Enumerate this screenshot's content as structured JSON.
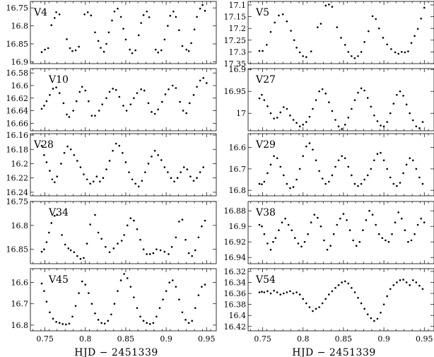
{
  "xlabel": "HJD − 2451339",
  "x_ticks": [
    "0.75",
    "0.8",
    "0.85",
    "0.9",
    "0.95"
  ],
  "chart_data": [
    {
      "type": "scatter",
      "title": "V4",
      "xlim": [
        0.732,
        0.962
      ],
      "ylim": [
        16.905,
        16.732
      ],
      "y_ticks": [
        "16.75",
        "16.8",
        "16.85",
        "16.9"
      ],
      "y_reversed": true,
      "x": [
        0.746,
        0.75,
        0.754,
        0.758,
        0.762,
        0.764,
        0.768,
        0.777,
        0.781,
        0.784,
        0.788,
        0.792,
        0.799,
        0.803,
        0.807,
        0.812,
        0.816,
        0.819,
        0.823,
        0.826,
        0.829,
        0.833,
        0.836,
        0.84,
        0.844,
        0.847,
        0.85,
        0.855,
        0.858,
        0.862,
        0.866,
        0.869,
        0.872,
        0.876,
        0.879,
        0.887,
        0.89,
        0.894,
        0.898,
        0.902,
        0.905,
        0.909,
        0.912,
        0.916,
        0.92,
        0.925,
        0.928,
        0.931,
        0.935,
        0.938,
        0.942,
        0.945,
        0.948
      ],
      "y": [
        16.873,
        16.866,
        16.862,
        16.798,
        16.778,
        16.762,
        16.768,
        16.837,
        16.862,
        16.87,
        16.868,
        16.858,
        16.768,
        16.762,
        16.771,
        16.818,
        16.842,
        16.861,
        16.872,
        16.85,
        16.818,
        16.785,
        16.76,
        16.752,
        16.775,
        16.808,
        16.838,
        16.866,
        16.876,
        16.868,
        16.826,
        16.792,
        16.77,
        16.76,
        16.776,
        16.866,
        16.874,
        16.868,
        16.838,
        16.8,
        16.772,
        16.76,
        16.775,
        16.812,
        16.856,
        16.866,
        16.87,
        16.848,
        16.81,
        16.775,
        16.752,
        16.742,
        16.758
      ]
    },
    {
      "type": "scatter",
      "title": "V5",
      "xlim": [
        0.732,
        0.962
      ],
      "ylim": [
        17.35,
        17.085
      ],
      "y_ticks": [
        "17.1",
        "17.15",
        "17.2",
        "17.25",
        "17.3",
        "17.35"
      ],
      "y_reversed": true,
      "x": [
        0.746,
        0.75,
        0.755,
        0.76,
        0.765,
        0.77,
        0.775,
        0.78,
        0.785,
        0.789,
        0.792,
        0.796,
        0.8,
        0.804,
        0.81,
        0.818,
        0.822,
        0.828,
        0.832,
        0.836,
        0.842,
        0.847,
        0.852,
        0.856,
        0.86,
        0.864,
        0.868,
        0.872,
        0.876,
        0.881,
        0.886,
        0.89,
        0.894,
        0.899,
        0.904,
        0.909,
        0.914,
        0.918,
        0.922,
        0.926,
        0.93,
        0.934,
        0.938,
        0.942,
        0.946,
        0.95
      ],
      "y": [
        17.296,
        17.296,
        17.27,
        17.215,
        17.175,
        17.145,
        17.14,
        17.17,
        17.21,
        17.25,
        17.282,
        17.302,
        17.318,
        17.322,
        17.298,
        17.195,
        17.18,
        17.103,
        17.098,
        17.108,
        17.195,
        17.24,
        17.27,
        17.3,
        17.318,
        17.327,
        17.318,
        17.3,
        17.258,
        17.212,
        17.148,
        17.16,
        17.2,
        17.24,
        17.268,
        17.288,
        17.302,
        17.308,
        17.3,
        17.302,
        17.298,
        17.262,
        17.232,
        17.202,
        17.158,
        17.112
      ]
    },
    {
      "type": "scatter",
      "title": "V10",
      "xlim": [
        0.732,
        0.962
      ],
      "ylim": [
        16.672,
        16.573
      ],
      "y_ticks": [
        "16.58",
        "16.6",
        "16.62",
        "16.64",
        "16.66"
      ],
      "y_reversed": true,
      "x": [
        0.746,
        0.749,
        0.752,
        0.756,
        0.76,
        0.764,
        0.768,
        0.773,
        0.777,
        0.78,
        0.785,
        0.789,
        0.793,
        0.796,
        0.8,
        0.804,
        0.808,
        0.812,
        0.817,
        0.821,
        0.826,
        0.83,
        0.834,
        0.838,
        0.842,
        0.847,
        0.851,
        0.856,
        0.86,
        0.864,
        0.869,
        0.873,
        0.878,
        0.882,
        0.886,
        0.89,
        0.895,
        0.899,
        0.903,
        0.908,
        0.912,
        0.917,
        0.921,
        0.925,
        0.929,
        0.934,
        0.938,
        0.942,
        0.946,
        0.95
      ],
      "y": [
        16.637,
        16.632,
        16.625,
        16.615,
        16.605,
        16.603,
        16.612,
        16.628,
        16.646,
        16.65,
        16.64,
        16.625,
        16.61,
        16.602,
        16.608,
        16.625,
        16.648,
        16.648,
        16.64,
        16.63,
        16.62,
        16.61,
        16.605,
        16.607,
        16.618,
        16.632,
        16.64,
        16.63,
        16.62,
        16.612,
        16.606,
        16.608,
        16.628,
        16.642,
        16.645,
        16.638,
        16.626,
        16.614,
        16.606,
        16.6,
        16.604,
        16.626,
        16.64,
        16.644,
        16.628,
        16.615,
        16.602,
        16.592,
        16.588,
        16.596
      ]
    },
    {
      "type": "scatter",
      "title": "V27",
      "xlim": [
        0.732,
        0.962
      ],
      "ylim": [
        17.04,
        16.898
      ],
      "y_ticks": [
        "16.9",
        "16.95",
        "17"
      ],
      "y_reversed": true,
      "x": [
        0.746,
        0.749,
        0.752,
        0.756,
        0.76,
        0.764,
        0.768,
        0.772,
        0.776,
        0.78,
        0.784,
        0.788,
        0.792,
        0.796,
        0.8,
        0.804,
        0.808,
        0.812,
        0.816,
        0.82,
        0.824,
        0.828,
        0.832,
        0.836,
        0.84,
        0.844,
        0.848,
        0.852,
        0.856,
        0.86,
        0.864,
        0.868,
        0.872,
        0.876,
        0.88,
        0.884,
        0.888,
        0.892,
        0.896,
        0.9,
        0.904,
        0.908,
        0.912,
        0.916,
        0.92,
        0.924,
        0.928,
        0.932,
        0.936,
        0.94,
        0.944,
        0.948
      ],
      "y": [
        16.966,
        16.958,
        16.97,
        16.984,
        17.0,
        17.012,
        17.01,
        16.998,
        16.986,
        16.99,
        17.005,
        17.015,
        17.022,
        17.03,
        17.026,
        17.02,
        17.008,
        16.99,
        16.97,
        16.95,
        16.945,
        16.955,
        16.975,
        16.995,
        17.015,
        17.03,
        17.036,
        17.026,
        17.01,
        16.99,
        16.97,
        16.953,
        16.943,
        16.948,
        16.965,
        16.985,
        17.005,
        17.018,
        17.028,
        17.03,
        17.02,
        17.0,
        16.978,
        16.958,
        16.95,
        16.96,
        16.98,
        17.0,
        17.016,
        17.03,
        17.034,
        17.02
      ]
    },
    {
      "type": "scatter",
      "title": "V28",
      "xlim": [
        0.732,
        0.962
      ],
      "ylim": [
        16.245,
        16.158
      ],
      "y_ticks": [
        "16.16",
        "16.18",
        "16.2",
        "16.22",
        "16.24"
      ],
      "y_reversed": true,
      "x": [
        0.746,
        0.749,
        0.752,
        0.756,
        0.759,
        0.762,
        0.765,
        0.77,
        0.774,
        0.778,
        0.782,
        0.786,
        0.79,
        0.794,
        0.798,
        0.802,
        0.806,
        0.81,
        0.814,
        0.818,
        0.822,
        0.826,
        0.83,
        0.834,
        0.838,
        0.842,
        0.846,
        0.85,
        0.854,
        0.858,
        0.862,
        0.866,
        0.87,
        0.874,
        0.878,
        0.882,
        0.886,
        0.89,
        0.894,
        0.898,
        0.902,
        0.906,
        0.91,
        0.914,
        0.918,
        0.922,
        0.926,
        0.93,
        0.934,
        0.938,
        0.942,
        0.946
      ],
      "y": [
        16.175,
        16.188,
        16.198,
        16.21,
        16.222,
        16.226,
        16.218,
        16.2,
        16.185,
        16.176,
        16.18,
        16.188,
        16.196,
        16.205,
        16.215,
        16.222,
        16.228,
        16.225,
        16.218,
        16.225,
        16.22,
        16.208,
        16.196,
        16.182,
        16.172,
        16.175,
        16.185,
        16.198,
        16.212,
        16.222,
        16.228,
        16.232,
        16.224,
        16.212,
        16.2,
        16.19,
        16.182,
        16.188,
        16.195,
        16.205,
        16.212,
        16.22,
        16.225,
        16.22,
        16.212,
        16.205,
        16.208,
        16.218,
        16.224,
        16.22,
        16.212,
        16.205
      ]
    },
    {
      "type": "scatter",
      "title": "V29",
      "xlim": [
        0.732,
        0.962
      ],
      "ylim": [
        16.826,
        16.535
      ],
      "y_ticks": [
        "16.6",
        "16.7",
        "16.8"
      ],
      "y_reversed": true,
      "x": [
        0.746,
        0.749,
        0.752,
        0.756,
        0.76,
        0.764,
        0.768,
        0.772,
        0.776,
        0.78,
        0.784,
        0.788,
        0.792,
        0.796,
        0.8,
        0.804,
        0.808,
        0.812,
        0.816,
        0.82,
        0.824,
        0.828,
        0.832,
        0.836,
        0.84,
        0.844,
        0.848,
        0.852,
        0.856,
        0.86,
        0.864,
        0.868,
        0.872,
        0.876,
        0.88,
        0.884,
        0.888,
        0.892,
        0.896,
        0.9,
        0.904,
        0.908,
        0.912,
        0.916,
        0.92,
        0.924,
        0.928,
        0.932,
        0.936,
        0.94,
        0.944,
        0.948
      ],
      "y": [
        16.77,
        16.772,
        16.76,
        16.72,
        16.68,
        16.64,
        16.65,
        16.69,
        16.73,
        16.77,
        16.79,
        16.785,
        16.75,
        16.7,
        16.64,
        16.595,
        16.58,
        16.61,
        16.66,
        16.71,
        16.745,
        16.77,
        16.76,
        16.73,
        16.69,
        16.66,
        16.64,
        16.65,
        16.69,
        16.73,
        16.77,
        16.78,
        16.77,
        16.75,
        16.73,
        16.7,
        16.66,
        16.63,
        16.625,
        16.66,
        16.7,
        16.74,
        16.77,
        16.78,
        16.765,
        16.72,
        16.68,
        16.65,
        16.66,
        16.7,
        16.74,
        16.77
      ]
    },
    {
      "type": "scatter",
      "title": "V34",
      "xlim": [
        0.732,
        0.962
      ],
      "ylim": [
        16.88,
        16.75
      ],
      "y_ticks": [
        "16.75",
        "16.8",
        "16.85"
      ],
      "y_reversed": true,
      "x": [
        0.746,
        0.749,
        0.752,
        0.755,
        0.758,
        0.762,
        0.765,
        0.771,
        0.775,
        0.779,
        0.782,
        0.786,
        0.79,
        0.794,
        0.798,
        0.802,
        0.806,
        0.812,
        0.816,
        0.82,
        0.825,
        0.83,
        0.835,
        0.84,
        0.845,
        0.848,
        0.852,
        0.856,
        0.86,
        0.864,
        0.868,
        0.872,
        0.876,
        0.88,
        0.884,
        0.888,
        0.893,
        0.898,
        0.903,
        0.907,
        0.912,
        0.916,
        0.92,
        0.924,
        0.928,
        0.932,
        0.936,
        0.94,
        0.944,
        0.948
      ],
      "y": [
        16.855,
        16.85,
        16.835,
        16.815,
        16.795,
        16.78,
        16.778,
        16.82,
        16.84,
        16.848,
        16.852,
        16.856,
        16.864,
        16.87,
        16.868,
        16.838,
        16.798,
        16.778,
        16.815,
        16.828,
        16.845,
        16.856,
        16.848,
        16.838,
        16.832,
        16.82,
        16.8,
        16.785,
        16.79,
        16.808,
        16.83,
        16.85,
        16.86,
        16.86,
        16.858,
        16.85,
        16.852,
        16.855,
        16.86,
        16.845,
        16.825,
        16.792,
        16.788,
        16.83,
        16.858,
        16.864,
        16.852,
        16.825,
        16.802,
        16.79
      ]
    },
    {
      "type": "scatter",
      "title": "V38",
      "xlim": [
        0.732,
        0.962
      ],
      "ylim": [
        16.948,
        16.868
      ],
      "y_ticks": [
        "16.88",
        "16.9",
        "16.92",
        "16.94"
      ],
      "y_reversed": true,
      "x": [
        0.746,
        0.749,
        0.752,
        0.756,
        0.76,
        0.763,
        0.766,
        0.77,
        0.774,
        0.778,
        0.782,
        0.786,
        0.79,
        0.794,
        0.798,
        0.802,
        0.806,
        0.81,
        0.814,
        0.818,
        0.822,
        0.826,
        0.83,
        0.834,
        0.838,
        0.842,
        0.846,
        0.85,
        0.854,
        0.858,
        0.862,
        0.866,
        0.87,
        0.874,
        0.878,
        0.882,
        0.886,
        0.89,
        0.894,
        0.898,
        0.902,
        0.906,
        0.91,
        0.914,
        0.918,
        0.922,
        0.926,
        0.93,
        0.934,
        0.938,
        0.942,
        0.946,
        0.95
      ],
      "y": [
        16.898,
        16.9,
        16.91,
        16.922,
        16.93,
        16.92,
        16.915,
        16.905,
        16.895,
        16.89,
        16.898,
        16.905,
        16.915,
        16.922,
        16.926,
        16.92,
        16.91,
        16.895,
        16.885,
        16.889,
        16.9,
        16.918,
        16.93,
        16.925,
        16.91,
        16.898,
        16.89,
        16.884,
        16.892,
        16.905,
        16.918,
        16.925,
        16.92,
        16.905,
        16.892,
        16.88,
        16.885,
        16.898,
        16.91,
        16.915,
        16.918,
        16.92,
        16.91,
        16.895,
        16.882,
        16.89,
        16.905,
        16.92,
        16.918,
        16.91,
        16.898,
        16.89,
        16.895
      ]
    },
    {
      "type": "scatter",
      "title": "V45",
      "xlim": [
        0.732,
        0.962
      ],
      "ylim": [
        16.827,
        16.535
      ],
      "y_ticks": [
        "16.6",
        "16.7",
        "16.8"
      ],
      "y_reversed": true,
      "x": [
        0.746,
        0.749,
        0.752,
        0.756,
        0.76,
        0.764,
        0.768,
        0.772,
        0.776,
        0.78,
        0.784,
        0.788,
        0.792,
        0.796,
        0.8,
        0.804,
        0.808,
        0.812,
        0.816,
        0.82,
        0.824,
        0.828,
        0.832,
        0.836,
        0.84,
        0.844,
        0.848,
        0.852,
        0.856,
        0.86,
        0.864,
        0.868,
        0.872,
        0.876,
        0.88,
        0.884,
        0.888,
        0.892,
        0.896,
        0.9,
        0.904,
        0.908,
        0.912,
        0.916,
        0.92,
        0.924,
        0.928,
        0.932,
        0.936,
        0.94,
        0.944,
        0.948
      ],
      "y": [
        16.605,
        16.64,
        16.69,
        16.74,
        16.77,
        16.785,
        16.79,
        16.795,
        16.797,
        16.793,
        16.76,
        16.71,
        16.65,
        16.595,
        16.61,
        16.65,
        16.7,
        16.745,
        16.775,
        16.79,
        16.793,
        16.78,
        16.75,
        16.7,
        16.64,
        16.59,
        16.56,
        16.58,
        16.62,
        16.67,
        16.72,
        16.76,
        16.78,
        16.79,
        16.795,
        16.79,
        16.76,
        16.72,
        16.68,
        16.64,
        16.6,
        16.59,
        16.62,
        16.68,
        16.74,
        16.775,
        16.79,
        16.78,
        16.72,
        16.66,
        16.62,
        16.61
      ]
    },
    {
      "type": "scatter",
      "title": "V54",
      "xlim": [
        0.732,
        0.962
      ],
      "ylim": [
        16.428,
        16.315
      ],
      "y_ticks": [
        "16.32",
        "16.34",
        "16.36",
        "16.38",
        "16.4",
        "16.42"
      ],
      "y_reversed": true,
      "x": [
        0.746,
        0.749,
        0.752,
        0.756,
        0.76,
        0.764,
        0.768,
        0.772,
        0.776,
        0.78,
        0.784,
        0.788,
        0.792,
        0.796,
        0.8,
        0.804,
        0.808,
        0.812,
        0.816,
        0.82,
        0.824,
        0.828,
        0.832,
        0.836,
        0.84,
        0.844,
        0.848,
        0.852,
        0.856,
        0.86,
        0.864,
        0.868,
        0.872,
        0.876,
        0.88,
        0.884,
        0.888,
        0.892,
        0.896,
        0.9,
        0.904,
        0.908,
        0.912,
        0.916,
        0.92,
        0.924,
        0.928,
        0.932,
        0.936,
        0.94,
        0.944,
        0.948
      ],
      "y": [
        16.358,
        16.357,
        16.358,
        16.356,
        16.36,
        16.355,
        16.358,
        16.362,
        16.36,
        16.358,
        16.356,
        16.36,
        16.358,
        16.362,
        16.37,
        16.378,
        16.385,
        16.392,
        16.388,
        16.385,
        16.378,
        16.37,
        16.362,
        16.356,
        16.35,
        16.345,
        16.34,
        16.338,
        16.342,
        16.35,
        16.358,
        16.368,
        16.378,
        16.388,
        16.398,
        16.405,
        16.41,
        16.406,
        16.395,
        16.38,
        16.365,
        16.352,
        16.345,
        16.34,
        16.336,
        16.335,
        16.34,
        16.345,
        16.336,
        16.34,
        16.346,
        16.352
      ]
    }
  ]
}
